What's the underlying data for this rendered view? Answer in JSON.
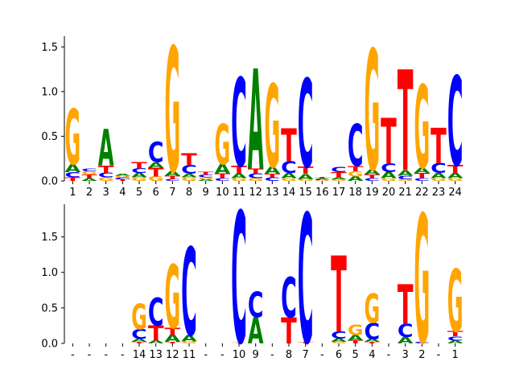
{
  "colors": {
    "A": "#008000",
    "C": "#0000ff",
    "G": "#ffa500",
    "T": "#ff0000"
  },
  "chart_data": [
    {
      "type": "sequence-logo",
      "ylim": [
        0,
        1.62
      ],
      "yticks": [
        0.0,
        0.5,
        1.0,
        1.5
      ],
      "ytick_labels": [
        "0.0",
        "0.5",
        "1.0",
        "1.5"
      ],
      "xtick_labels": [
        "1",
        "2",
        "3",
        "4",
        "5",
        "6",
        "7",
        "8",
        "9",
        "10",
        "11",
        "12",
        "13",
        "14",
        "15",
        "16",
        "17",
        "18",
        "19",
        "20",
        "21",
        "22",
        "23",
        "24"
      ],
      "positions": [
        [
          {
            "l": "T",
            "h": 0.04
          },
          {
            "l": "C",
            "h": 0.06
          },
          {
            "l": "A",
            "h": 0.09
          },
          {
            "l": "G",
            "h": 0.62
          }
        ],
        [
          {
            "l": "A",
            "h": 0.03
          },
          {
            "l": "T",
            "h": 0.04
          },
          {
            "l": "G",
            "h": 0.04
          },
          {
            "l": "C",
            "h": 0.03
          }
        ],
        [
          {
            "l": "G",
            "h": 0.04
          },
          {
            "l": "C",
            "h": 0.05
          },
          {
            "l": "T",
            "h": 0.08
          },
          {
            "l": "A",
            "h": 0.41
          }
        ],
        [
          {
            "l": "T",
            "h": 0.02
          },
          {
            "l": "C",
            "h": 0.02
          },
          {
            "l": "G",
            "h": 0.02
          },
          {
            "l": "A",
            "h": 0.02
          }
        ],
        [
          {
            "l": "G",
            "h": 0.04
          },
          {
            "l": "A",
            "h": 0.05
          },
          {
            "l": "C",
            "h": 0.05
          },
          {
            "l": "T",
            "h": 0.07
          }
        ],
        [
          {
            "l": "G",
            "h": 0.05
          },
          {
            "l": "T",
            "h": 0.1
          },
          {
            "l": "A",
            "h": 0.06
          },
          {
            "l": "C",
            "h": 0.23
          }
        ],
        [
          {
            "l": "C",
            "h": 0.02
          },
          {
            "l": "T",
            "h": 0.04
          },
          {
            "l": "A",
            "h": 0.05
          },
          {
            "l": "G",
            "h": 1.4
          }
        ],
        [
          {
            "l": "G",
            "h": 0.04
          },
          {
            "l": "A",
            "h": 0.04
          },
          {
            "l": "C",
            "h": 0.1
          },
          {
            "l": "T",
            "h": 0.13
          }
        ],
        [
          {
            "l": "A",
            "h": 0.02
          },
          {
            "l": "G",
            "h": 0.02
          },
          {
            "l": "C",
            "h": 0.03
          },
          {
            "l": "T",
            "h": 0.03
          }
        ],
        [
          {
            "l": "C",
            "h": 0.03
          },
          {
            "l": "T",
            "h": 0.05
          },
          {
            "l": "A",
            "h": 0.11
          },
          {
            "l": "G",
            "h": 0.45
          }
        ],
        [
          {
            "l": "G",
            "h": 0.03
          },
          {
            "l": "A",
            "h": 0.05
          },
          {
            "l": "T",
            "h": 0.09
          },
          {
            "l": "C",
            "h": 0.99
          }
        ],
        [
          {
            "l": "G",
            "h": 0.03
          },
          {
            "l": "C",
            "h": 0.05
          },
          {
            "l": "T",
            "h": 0.06
          },
          {
            "l": "A",
            "h": 1.12
          }
        ],
        [
          {
            "l": "C",
            "h": 0.04
          },
          {
            "l": "T",
            "h": 0.04
          },
          {
            "l": "A",
            "h": 0.08
          },
          {
            "l": "G",
            "h": 0.93
          }
        ],
        [
          {
            "l": "G",
            "h": 0.03
          },
          {
            "l": "A",
            "h": 0.06
          },
          {
            "l": "C",
            "h": 0.13
          },
          {
            "l": "T",
            "h": 0.37
          }
        ],
        [
          {
            "l": "G",
            "h": 0.02
          },
          {
            "l": "A",
            "h": 0.06
          },
          {
            "l": "T",
            "h": 0.08
          },
          {
            "l": "C",
            "h": 0.99
          }
        ],
        [
          {
            "l": "G",
            "h": 0.01
          },
          {
            "l": "C",
            "h": 0.01
          },
          {
            "l": "A",
            "h": 0.01
          },
          {
            "l": "T",
            "h": 0.01
          }
        ],
        [
          {
            "l": "G",
            "h": 0.02
          },
          {
            "l": "A",
            "h": 0.02
          },
          {
            "l": "T",
            "h": 0.06
          },
          {
            "l": "C",
            "h": 0.06
          }
        ],
        [
          {
            "l": "A",
            "h": 0.05
          },
          {
            "l": "G",
            "h": 0.06
          },
          {
            "l": "T",
            "h": 0.06
          },
          {
            "l": "C",
            "h": 0.47
          }
        ],
        [
          {
            "l": "C",
            "h": 0.03
          },
          {
            "l": "T",
            "h": 0.04
          },
          {
            "l": "A",
            "h": 0.06
          },
          {
            "l": "G",
            "h": 1.35
          }
        ],
        [
          {
            "l": "G",
            "h": 0.03
          },
          {
            "l": "A",
            "h": 0.07
          },
          {
            "l": "C",
            "h": 0.1
          },
          {
            "l": "T",
            "h": 0.51
          }
        ],
        [
          {
            "l": "G",
            "h": 0.02
          },
          {
            "l": "C",
            "h": 0.04
          },
          {
            "l": "A",
            "h": 0.06
          },
          {
            "l": "T",
            "h": 1.13
          }
        ],
        [
          {
            "l": "C",
            "h": 0.03
          },
          {
            "l": "T",
            "h": 0.06
          },
          {
            "l": "A",
            "h": 0.06
          },
          {
            "l": "G",
            "h": 0.93
          }
        ],
        [
          {
            "l": "G",
            "h": 0.03
          },
          {
            "l": "A",
            "h": 0.06
          },
          {
            "l": "C",
            "h": 0.11
          },
          {
            "l": "T",
            "h": 0.4
          }
        ],
        [
          {
            "l": "G",
            "h": 0.03
          },
          {
            "l": "A",
            "h": 0.06
          },
          {
            "l": "T",
            "h": 0.09
          },
          {
            "l": "C",
            "h": 1.0
          }
        ]
      ]
    },
    {
      "type": "sequence-logo",
      "ylim": [
        0,
        1.96
      ],
      "yticks": [
        0.0,
        0.5,
        1.0,
        1.5
      ],
      "ytick_labels": [
        "0.0",
        "0.5",
        "1.0",
        "1.5"
      ],
      "xtick_labels": [
        "-",
        "-",
        "-",
        "-",
        "14",
        "13",
        "12",
        "11",
        "-",
        "-",
        "10",
        "9",
        "-",
        "8",
        "7",
        "-",
        "6",
        "5",
        "4",
        "-",
        "3",
        "2",
        "-",
        "1"
      ],
      "positions": [
        [],
        [],
        [],
        [],
        [
          {
            "l": "T",
            "h": 0.02
          },
          {
            "l": "A",
            "h": 0.04
          },
          {
            "l": "C",
            "h": 0.14
          },
          {
            "l": "G",
            "h": 0.36
          }
        ],
        [
          {
            "l": "A",
            "h": 0.04
          },
          {
            "l": "T",
            "h": 0.21
          },
          {
            "l": "C",
            "h": 0.39
          }
        ],
        [
          {
            "l": "T",
            "h": 0.02
          },
          {
            "l": "A",
            "h": 0.1
          },
          {
            "l": "T",
            "h": 0.1
          },
          {
            "l": "G",
            "h": 0.89
          }
        ],
        [
          {
            "l": "G",
            "h": 0.03
          },
          {
            "l": "A",
            "h": 0.09
          },
          {
            "l": "C",
            "h": 1.24
          }
        ],
        [],
        [],
        [
          {
            "l": "T",
            "h": 0.01
          },
          {
            "l": "G",
            "h": 0.01
          },
          {
            "l": "C",
            "h": 1.85
          }
        ],
        [
          {
            "l": "A",
            "h": 0.37
          },
          {
            "l": "C",
            "h": 0.36
          }
        ],
        [],
        [
          {
            "l": "T",
            "h": 0.37
          },
          {
            "l": "C",
            "h": 0.57
          }
        ],
        [
          {
            "l": "T",
            "h": 0.02
          },
          {
            "l": "C",
            "h": 1.82
          }
        ],
        [],
        [
          {
            "l": "G",
            "h": 0.02
          },
          {
            "l": "A",
            "h": 0.05
          },
          {
            "l": "C",
            "h": 0.1
          },
          {
            "l": "T",
            "h": 1.07
          }
        ],
        [
          {
            "l": "T",
            "h": 0.04
          },
          {
            "l": "A",
            "h": 0.08
          },
          {
            "l": "G",
            "h": 0.15
          }
        ],
        [
          {
            "l": "T",
            "h": 0.02
          },
          {
            "l": "A",
            "h": 0.04
          },
          {
            "l": "C",
            "h": 0.23
          },
          {
            "l": "G",
            "h": 0.41
          }
        ],
        [],
        [
          {
            "l": "A",
            "h": 0.09
          },
          {
            "l": "C",
            "h": 0.18
          },
          {
            "l": "T",
            "h": 0.56
          }
        ],
        [
          {
            "l": "C",
            "h": 0.02
          },
          {
            "l": "G",
            "h": 1.81
          }
        ],
        [],
        [
          {
            "l": "A",
            "h": 0.04
          },
          {
            "l": "C",
            "h": 0.06
          },
          {
            "l": "T",
            "h": 0.07
          },
          {
            "l": "G",
            "h": 0.88
          }
        ]
      ]
    }
  ]
}
